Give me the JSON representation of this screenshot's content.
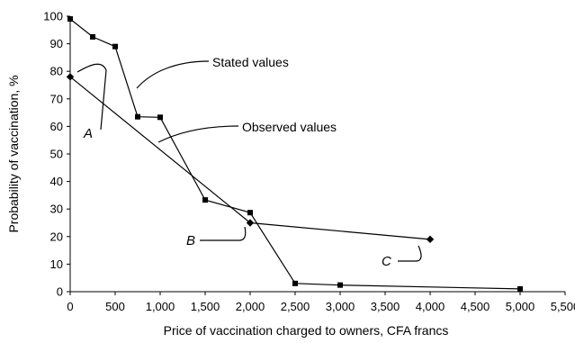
{
  "chart_data": {
    "type": "line",
    "xlabel": "Price of vaccination charged to owners, CFA francs",
    "ylabel": "Probability of vaccination, %",
    "xlim": [
      0,
      5500
    ],
    "ylim": [
      0,
      100
    ],
    "x_ticks": [
      0,
      500,
      1000,
      1500,
      2000,
      2500,
      3000,
      3500,
      4000,
      4500,
      5000,
      5500
    ],
    "x_tick_labels": [
      "0",
      "500",
      "1,000",
      "1,500",
      "2,000",
      "2,500",
      "3,000",
      "3,500",
      "4,000",
      "4,500",
      "5,000",
      "5,500"
    ],
    "y_ticks": [
      0,
      10,
      20,
      30,
      40,
      50,
      60,
      70,
      80,
      90,
      100
    ],
    "y_tick_labels": [
      "0",
      "10",
      "20",
      "30",
      "40",
      "50",
      "60",
      "70",
      "80",
      "90",
      "100"
    ],
    "grid": false,
    "series": [
      {
        "name": "Stated values",
        "marker": "square",
        "color": "#000000",
        "points": [
          {
            "x": 0,
            "y": 99
          },
          {
            "x": 250,
            "y": 92.5
          },
          {
            "x": 500,
            "y": 89
          },
          {
            "x": 750,
            "y": 63.5
          },
          {
            "x": 1000,
            "y": 63.3
          },
          {
            "x": 1500,
            "y": 33.3
          },
          {
            "x": 2000,
            "y": 28.7
          },
          {
            "x": 2500,
            "y": 3
          },
          {
            "x": 3000,
            "y": 2.4
          },
          {
            "x": 5000,
            "y": 1
          }
        ]
      },
      {
        "name": "Observed values",
        "marker": "diamond",
        "color": "#000000",
        "points": [
          {
            "x": 0,
            "y": 78
          },
          {
            "x": 2000,
            "y": 25
          },
          {
            "x": 4000,
            "y": 19
          }
        ]
      }
    ],
    "annotations": [
      {
        "text": "Stated values",
        "kind": "series-label",
        "series": "Stated values"
      },
      {
        "text": "Observed values",
        "kind": "series-label",
        "series": "Observed values"
      },
      {
        "text": "A",
        "kind": "point-label",
        "series": "Observed values",
        "point_x": 0
      },
      {
        "text": "B",
        "kind": "point-label",
        "series": "Observed values",
        "point_x": 2000
      },
      {
        "text": "C",
        "kind": "point-label",
        "series": "Observed values",
        "point_x": 4000
      }
    ]
  }
}
